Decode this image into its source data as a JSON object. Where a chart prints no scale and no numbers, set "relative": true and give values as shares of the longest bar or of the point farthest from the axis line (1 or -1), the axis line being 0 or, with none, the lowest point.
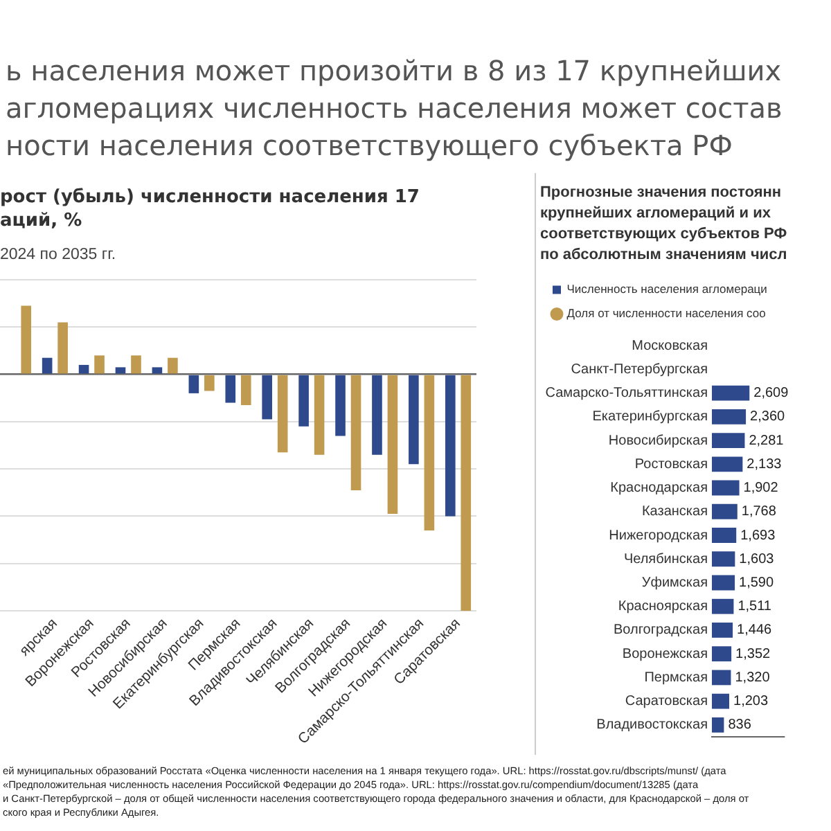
{
  "chart_data": [
    {
      "type": "other",
      "title": "ь населения может произойти в 8 из 17 крупнейших\nагломерациях численность населения может состав\nности населения соответствующего субъекта РФ",
      "annotations": [
        "ей муниципальных образований Росстата «Оценка численности населения на 1 января текущего года». URL: https://rosstat.gov.ru/dbscripts/munst/ (дата",
        "«Предположительная численность населения Российской Федерации до 2045 года». URL: https://rosstat.gov.ru/compendium/document/13285 (дата",
        "и Санкт-Петербургской – доля от общей численности населения соответствующего города федерального значения и области, для Краснодарской – доля от",
        "ского края и Республики Адыгея."
      ]
    },
    {
      "type": "bar",
      "title": "рост (убыль) численности населения 17\nаций, %",
      "subtitle": "2024 по 2035 гг.",
      "relative": true,
      "grid": "y",
      "tick_labels": "x",
      "categories": [
        null,
        "ярская",
        "Воронежская",
        "Ростовская",
        "Новосибирская",
        "Екатеринбургская",
        "Пермская",
        "Владивостокская",
        "Челябинская",
        "Волгоградская",
        "Нижегородская",
        "Самарско-Тольяттинская",
        "Саратовская"
      ],
      "series": [
        {
          "color": "#2e4a8c",
          "values": [
            null,
            0.07,
            0.04,
            0.03,
            0.03,
            -0.08,
            -0.12,
            -0.19,
            -0.22,
            -0.26,
            -0.34,
            -0.38,
            -0.6
          ]
        },
        {
          "color": "#c09a4e",
          "values": [
            0.29,
            0.22,
            0.08,
            0.08,
            0.07,
            -0.07,
            -0.13,
            -0.33,
            -0.34,
            -0.49,
            -0.59,
            -0.66,
            -1
          ]
        }
      ]
    },
    {
      "type": "bar",
      "orientation": "horizontal",
      "title": "Прогнозные значения постоянн\nкрупнейших агломераций и их\nсоответствующих субъектов РФ\nпо абсолютным значениям числ",
      "legend": "top left",
      "tick_labels": "y",
      "categories": [
        "Московская",
        "Санкт-Петербургская",
        "Самарско-Тольяттинская",
        "Екатеринбургская",
        "Новосибирская",
        "Ростовская",
        "Краснодарская",
        "Казанская",
        "Нижегородская",
        "Челябинская",
        "Уфимская",
        "Красноярская",
        "Волгоградская",
        "Воронежская",
        "Пермская",
        "Саратовская",
        "Владивостокская"
      ],
      "series": [
        {
          "name": "Численность населения агломераци",
          "color": "#2e4a8c",
          "values": [
            null,
            null,
            2609,
            2360,
            2281,
            2133,
            1902,
            1768,
            1693,
            1603,
            1590,
            1511,
            1446,
            1352,
            1320,
            1203,
            836
          ],
          "value_labels": [
            null,
            null,
            "2,609",
            "2,360",
            "2,281",
            "2,133",
            "1,902",
            "1,768",
            "1,693",
            "1,603",
            "1,590",
            "1,511",
            "1,446",
            "1,352",
            "1,320",
            "1,203",
            "836"
          ]
        },
        {
          "name": "Доля от численности населения соо",
          "type": "scatter",
          "marker": "circle",
          "color": "#c09a4e",
          "values": [
            null,
            null,
            null,
            null,
            null,
            null,
            null,
            null,
            null,
            null,
            null,
            null,
            null,
            null,
            null,
            null,
            null
          ]
        }
      ]
    }
  ]
}
